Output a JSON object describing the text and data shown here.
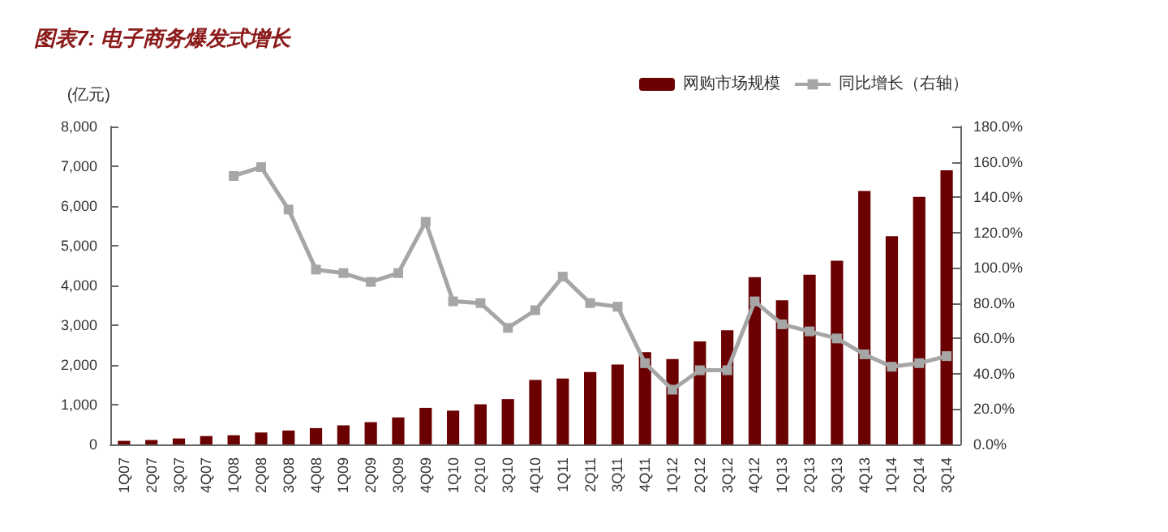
{
  "chart_data": {
    "type": "bar",
    "title": "图表7: 电子商务爆发式增长",
    "ylabel": "(亿元)",
    "categories": [
      "1Q07",
      "2Q07",
      "3Q07",
      "4Q07",
      "1Q08",
      "2Q08",
      "3Q08",
      "4Q08",
      "1Q09",
      "2Q09",
      "3Q09",
      "4Q09",
      "1Q10",
      "2Q10",
      "3Q10",
      "4Q10",
      "1Q11",
      "2Q11",
      "3Q11",
      "4Q11",
      "1Q12",
      "2Q12",
      "3Q12",
      "4Q12",
      "1Q13",
      "2Q13",
      "3Q13",
      "4Q13",
      "1Q14",
      "2Q14",
      "3Q14"
    ],
    "series": [
      {
        "name": "网购市场规模",
        "color": "#6b0000",
        "values": [
          90,
          110,
          150,
          210,
          230,
          300,
          350,
          410,
          480,
          560,
          680,
          920,
          850,
          1010,
          1140,
          1620,
          1660,
          1820,
          2010,
          2320,
          2150,
          2590,
          2870,
          4210,
          3630,
          4270,
          4620,
          6380,
          5240,
          6230,
          6900
        ]
      },
      {
        "name": "同比增长（右轴）",
        "type": "line",
        "axis": "y2",
        "color": "#a6a6a6",
        "marker": "square",
        "values": [
          null,
          null,
          null,
          null,
          152,
          157,
          133,
          99,
          97,
          92,
          97,
          126,
          81,
          80,
          66,
          76,
          95,
          80,
          78,
          46,
          31,
          42,
          42,
          81,
          68,
          64,
          60,
          51,
          44,
          46,
          50
        ]
      }
    ],
    "ylim": [
      0,
      8000
    ],
    "yticks": [
      0,
      {
        "value": 1000,
        "label": "1,000"
      },
      {
        "value": 2000,
        "label": "2,000"
      },
      {
        "value": 3000,
        "label": "3,000"
      },
      {
        "value": 4000,
        "label": "4,000"
      },
      {
        "value": 5000,
        "label": "5,000"
      },
      {
        "value": 6000,
        "label": "6,000"
      },
      {
        "value": 7000,
        "label": "7,000"
      },
      {
        "value": 8000,
        "label": "8,000"
      }
    ],
    "y2lim": [
      0,
      180
    ],
    "y2ticks": [
      {
        "value": 0,
        "label": "0.0%"
      },
      {
        "value": 20,
        "label": "20.0%"
      },
      {
        "value": 40,
        "label": "40.0%"
      },
      {
        "value": 60,
        "label": "60.0%"
      },
      {
        "value": 80,
        "label": "80.0%"
      },
      {
        "value": 100,
        "label": "100.0%"
      },
      {
        "value": 120,
        "label": "120.0%"
      },
      {
        "value": 140,
        "label": "140.0%"
      },
      {
        "value": 160,
        "label": "160.0%"
      },
      {
        "value": 180,
        "label": "180.0%"
      }
    ],
    "legend": "top right",
    "grid": false
  }
}
